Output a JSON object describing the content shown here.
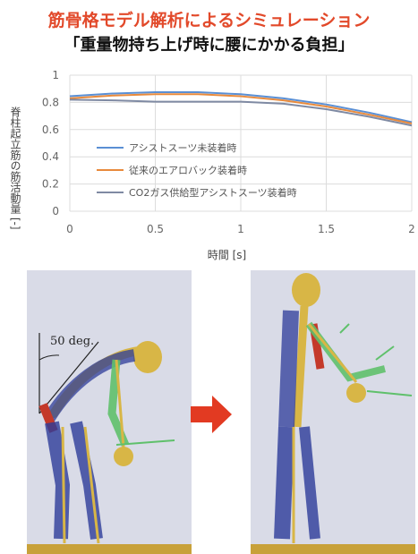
{
  "title": "筋骨格モデル解析によるシミュレーション",
  "subtitle": "「重量物持ち上げ時に腰にかかる負担」",
  "chart_data": {
    "type": "line",
    "xlabel": "時間 [s]",
    "ylabel": "脊柱起立筋の筋活動量 [-]",
    "xlim": [
      0,
      2
    ],
    "ylim": [
      0,
      1
    ],
    "xticks": [
      "0",
      "0.5",
      "1",
      "1.5",
      "2"
    ],
    "yticks": [
      "0",
      "0.2",
      "0.4",
      "0.6",
      "0.8",
      "1"
    ],
    "grid": true,
    "legend_position": "center-left",
    "series": [
      {
        "name": "アシストスーツ未装着時",
        "color": "#5a8fd4",
        "x": [
          0,
          0.25,
          0.5,
          0.75,
          1.0,
          1.25,
          1.5,
          1.75,
          2.0
        ],
        "y": [
          0.845,
          0.865,
          0.875,
          0.875,
          0.86,
          0.83,
          0.785,
          0.725,
          0.655
        ]
      },
      {
        "name": "従来のエアロバック装着時",
        "color": "#e88a3c",
        "x": [
          0,
          0.25,
          0.5,
          0.75,
          1.0,
          1.25,
          1.5,
          1.75,
          2.0
        ],
        "y": [
          0.83,
          0.85,
          0.86,
          0.86,
          0.845,
          0.815,
          0.77,
          0.71,
          0.645
        ]
      },
      {
        "name": "CO2ガス供給型アシストスーツ装着時",
        "color": "#7f8aa3",
        "x": [
          0,
          0.25,
          0.5,
          0.75,
          1.0,
          1.25,
          1.5,
          1.75,
          2.0
        ],
        "y": [
          0.82,
          0.815,
          0.805,
          0.805,
          0.805,
          0.79,
          0.75,
          0.695,
          0.63
        ]
      }
    ]
  },
  "illustration": {
    "angle_label": "50 deg.",
    "colors": {
      "background": "#d9dbe7",
      "arrow": "#e23a22",
      "bone": "#d8b646",
      "muscle_blue": "#2d3c9a",
      "muscle_green": "#5fc06b"
    }
  }
}
